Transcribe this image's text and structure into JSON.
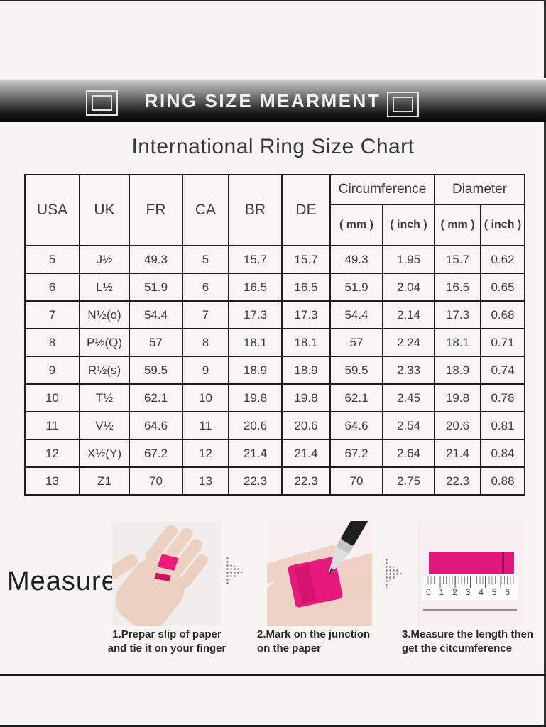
{
  "colors": {
    "accent_pink": "#e6197d",
    "banner_dark": "#050505",
    "page_bg": "#f7f5f2"
  },
  "banner": {
    "title": "RING SIZE MEARMENT"
  },
  "chart": {
    "title": "International Ring Size Chart"
  },
  "table": {
    "col_headers": [
      "USA",
      "UK",
      "FR",
      "CA",
      "BR",
      "DE"
    ],
    "group_headers": [
      {
        "label": "Circumference",
        "sub": [
          "( mm )",
          "( inch )"
        ]
      },
      {
        "label": "Diameter",
        "sub": [
          "( mm )",
          "( inch )"
        ]
      }
    ],
    "rows": [
      [
        "5",
        "J½",
        "49.3",
        "5",
        "15.7",
        "15.7",
        "49.3",
        "1.95",
        "15.7",
        "0.62"
      ],
      [
        "6",
        "L½",
        "51.9",
        "6",
        "16.5",
        "16.5",
        "51.9",
        "2.04",
        "16.5",
        "0.65"
      ],
      [
        "7",
        "N½(o)",
        "54.4",
        "7",
        "17.3",
        "17.3",
        "54.4",
        "2.14",
        "17.3",
        "0.68"
      ],
      [
        "8",
        "P½(Q)",
        "57",
        "8",
        "18.1",
        "18.1",
        "57",
        "2.24",
        "18.1",
        "0.71"
      ],
      [
        "9",
        "R½(s)",
        "59.5",
        "9",
        "18.9",
        "18.9",
        "59.5",
        "2.33",
        "18.9",
        "0.74"
      ],
      [
        "10",
        "T½",
        "62.1",
        "10",
        "19.8",
        "19.8",
        "62.1",
        "2.45",
        "19.8",
        "0.78"
      ],
      [
        "11",
        "V½",
        "64.6",
        "11",
        "20.6",
        "20.6",
        "64.6",
        "2.54",
        "20.6",
        "0.81"
      ],
      [
        "12",
        "X½(Y)",
        "67.2",
        "12",
        "21.4",
        "21.4",
        "67.2",
        "2.64",
        "21.4",
        "0.84"
      ],
      [
        "13",
        "Z1",
        "70",
        "13",
        "22.3",
        "22.3",
        "70",
        "2.75",
        "22.3",
        "0.88"
      ]
    ]
  },
  "measure": {
    "heading": "Measure",
    "steps": [
      {
        "image": "hand-with-paper-strip",
        "caption_line1": "1.Prepar slip of paper",
        "caption_line2": "and tie it on your finger"
      },
      {
        "image": "palm-marking-pen",
        "caption_line1": "2.Mark on the junction",
        "caption_line2": "on the paper"
      },
      {
        "image": "ruler-measuring-strip",
        "caption_line1": "3.Measure the length then",
        "caption_line2": "get the citcumference",
        "ruler_numbers": [
          "0",
          "1",
          "2",
          "3",
          "4",
          "5",
          "6"
        ]
      }
    ]
  },
  "chart_data": {
    "type": "table",
    "title": "International Ring Size Chart",
    "columns": [
      "USA",
      "UK",
      "FR",
      "CA",
      "BR",
      "DE",
      "Circumference ( mm )",
      "Circumference ( inch )",
      "Diameter ( mm )",
      "Diameter ( inch )"
    ],
    "rows": [
      [
        "5",
        "J½",
        "49.3",
        "5",
        "15.7",
        "15.7",
        "49.3",
        "1.95",
        "15.7",
        "0.62"
      ],
      [
        "6",
        "L½",
        "51.9",
        "6",
        "16.5",
        "16.5",
        "51.9",
        "2.04",
        "16.5",
        "0.65"
      ],
      [
        "7",
        "N½(o)",
        "54.4",
        "7",
        "17.3",
        "17.3",
        "54.4",
        "2.14",
        "17.3",
        "0.68"
      ],
      [
        "8",
        "P½(Q)",
        "57",
        "8",
        "18.1",
        "18.1",
        "57",
        "2.24",
        "18.1",
        "0.71"
      ],
      [
        "9",
        "R½(s)",
        "59.5",
        "9",
        "18.9",
        "18.9",
        "59.5",
        "2.33",
        "18.9",
        "0.74"
      ],
      [
        "10",
        "T½",
        "62.1",
        "10",
        "19.8",
        "19.8",
        "62.1",
        "2.45",
        "19.8",
        "0.78"
      ],
      [
        "11",
        "V½",
        "64.6",
        "11",
        "20.6",
        "20.6",
        "64.6",
        "2.54",
        "20.6",
        "0.81"
      ],
      [
        "12",
        "X½(Y)",
        "67.2",
        "12",
        "21.4",
        "21.4",
        "67.2",
        "2.64",
        "21.4",
        "0.84"
      ],
      [
        "13",
        "Z1",
        "70",
        "13",
        "22.3",
        "22.3",
        "70",
        "2.75",
        "22.3",
        "0.88"
      ]
    ]
  }
}
